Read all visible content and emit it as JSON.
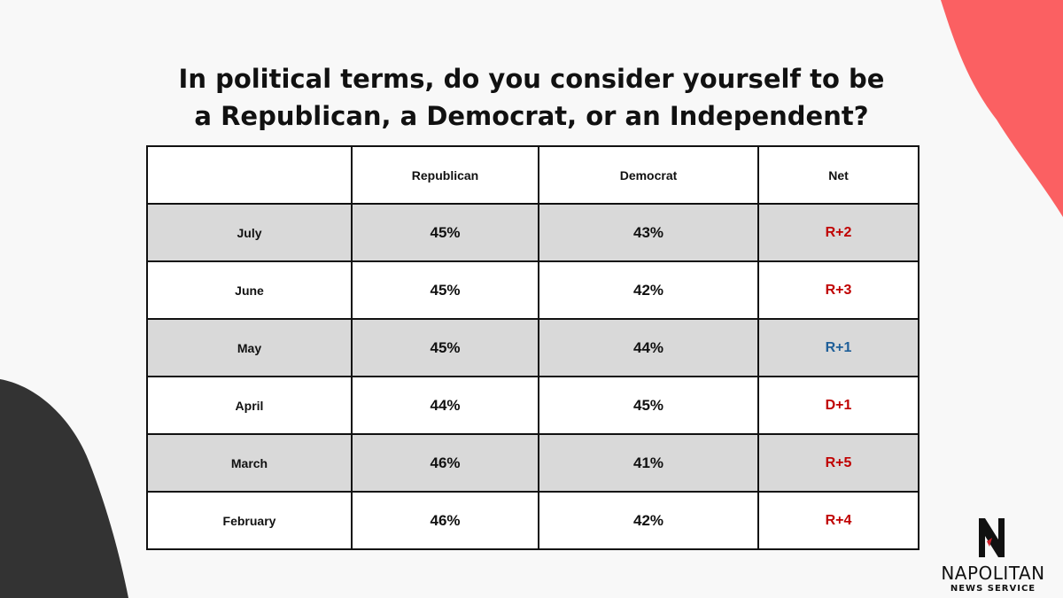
{
  "title_lines": [
    "In political terms, do you consider yourself to be",
    "a Republican, a Democrat, or an Independent?"
  ],
  "colors": {
    "background": "#f8f8f8",
    "accent_blob": "#fb6062",
    "dark_blob": "#333333",
    "shade_row": "#d9d9d9",
    "net_red": "#c00000",
    "net_blue": "#1f5f99"
  },
  "chart_data": {
    "type": "table",
    "columns": [
      "",
      "Republican",
      "Democrat",
      "Net"
    ],
    "rows": [
      {
        "month": "July",
        "republican": "45%",
        "democrat": "43%",
        "net": "R+2",
        "net_color": "#c00000"
      },
      {
        "month": "June",
        "republican": "45%",
        "democrat": "42%",
        "net": "R+3",
        "net_color": "#c00000"
      },
      {
        "month": "May",
        "republican": "45%",
        "democrat": "44%",
        "net": "R+1",
        "net_color": "#1f5f99"
      },
      {
        "month": "April",
        "republican": "44%",
        "democrat": "45%",
        "net": "D+1",
        "net_color": "#c00000"
      },
      {
        "month": "March",
        "republican": "46%",
        "democrat": "41%",
        "net": "R+5",
        "net_color": "#c00000"
      },
      {
        "month": "February",
        "republican": "46%",
        "democrat": "42%",
        "net": "R+4",
        "net_color": "#c00000"
      }
    ]
  },
  "logo": {
    "name": "NAPOLITAN",
    "subtitle": "NEWS SERVICE",
    "icon": "napolitan-n-eagle-icon"
  }
}
